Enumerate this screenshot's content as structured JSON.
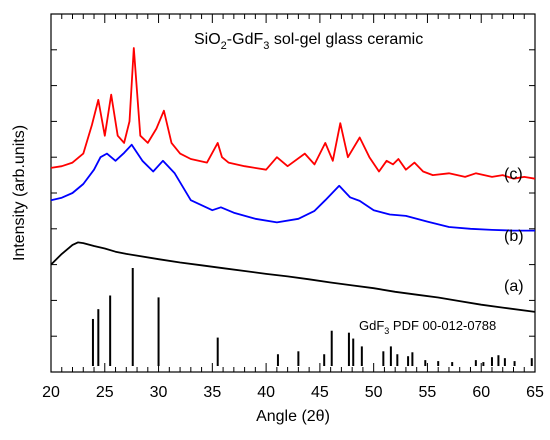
{
  "chart_data": {
    "type": "line",
    "title_main": "SiO",
    "title_sub1": "2",
    "title_mid": "-GdF",
    "title_sub2": "3",
    "title_end": " sol-gel glass ceramic",
    "xlabel": "Angle (2θ)",
    "ylabel": "Intensity (arb.units)",
    "xlim": [
      20,
      65
    ],
    "xticks": [
      20,
      25,
      30,
      35,
      40,
      45,
      50,
      55,
      60,
      65
    ],
    "y_ticklabels_shown": false,
    "grid": false,
    "colors": {
      "a": "#000000",
      "b": "#0000ff",
      "c": "#ff0000",
      "ref": "#000000"
    },
    "series": [
      {
        "name": "(a)",
        "label": "(a)",
        "x": [
          20,
          21,
          22,
          22.5,
          23,
          24,
          25,
          26,
          27,
          28,
          30,
          32,
          34,
          36,
          38,
          40,
          42,
          44,
          46,
          48,
          50,
          52,
          54,
          56,
          58,
          60,
          62,
          65
        ],
        "y": [
          0.3,
          0.33,
          0.355,
          0.362,
          0.36,
          0.352,
          0.345,
          0.336,
          0.33,
          0.325,
          0.315,
          0.306,
          0.298,
          0.29,
          0.282,
          0.274,
          0.267,
          0.259,
          0.25,
          0.242,
          0.234,
          0.224,
          0.216,
          0.208,
          0.198,
          0.188,
          0.18,
          0.168
        ]
      },
      {
        "name": "(b)",
        "label": "(b)",
        "x": [
          20,
          21,
          22,
          23,
          24,
          24.6,
          25.2,
          26,
          26.8,
          27.5,
          28.5,
          29.5,
          30.4,
          31.5,
          33,
          35,
          35.8,
          37,
          39,
          41,
          43,
          44.5,
          45.5,
          46.8,
          47.8,
          48.7,
          50,
          51.5,
          53,
          55,
          57,
          59,
          61,
          63,
          65
        ],
        "y": [
          0.48,
          0.487,
          0.5,
          0.525,
          0.565,
          0.6,
          0.61,
          0.59,
          0.612,
          0.635,
          0.59,
          0.56,
          0.59,
          0.555,
          0.48,
          0.452,
          0.46,
          0.445,
          0.428,
          0.418,
          0.428,
          0.45,
          0.48,
          0.52,
          0.488,
          0.478,
          0.452,
          0.44,
          0.436,
          0.42,
          0.405,
          0.4,
          0.397,
          0.395,
          0.395
        ]
      },
      {
        "name": "(c)",
        "label": "(c)",
        "x": [
          20,
          21,
          22,
          23,
          23.8,
          24.4,
          25,
          25.6,
          26.2,
          26.8,
          27.3,
          27.7,
          28.3,
          29,
          29.8,
          30.5,
          31.2,
          32,
          33,
          34.5,
          35.5,
          35.9,
          36.5,
          38,
          40,
          41,
          42,
          43.6,
          44.5,
          45.5,
          46.2,
          46.9,
          47.6,
          48.7,
          49.6,
          50.5,
          51.2,
          51.8,
          52.3,
          53,
          53.8,
          54.6,
          55.5,
          57,
          58.5,
          59.5,
          61,
          62,
          63,
          64,
          65
        ],
        "y": [
          0.57,
          0.575,
          0.585,
          0.61,
          0.69,
          0.76,
          0.66,
          0.775,
          0.66,
          0.64,
          0.7,
          0.905,
          0.66,
          0.64,
          0.68,
          0.73,
          0.64,
          0.61,
          0.595,
          0.585,
          0.64,
          0.6,
          0.585,
          0.575,
          0.565,
          0.6,
          0.575,
          0.61,
          0.58,
          0.64,
          0.59,
          0.695,
          0.6,
          0.655,
          0.6,
          0.56,
          0.59,
          0.58,
          0.595,
          0.565,
          0.585,
          0.56,
          0.55,
          0.555,
          0.545,
          0.555,
          0.545,
          0.55,
          0.54,
          0.545,
          0.54
        ]
      }
    ],
    "reference": {
      "label_pre": "GdF",
      "label_sub": "3",
      "label_post": " PDF 00-012-0788",
      "peaks": [
        {
          "x": 23.9,
          "h": 0.48
        },
        {
          "x": 24.4,
          "h": 0.58
        },
        {
          "x": 25.5,
          "h": 0.72
        },
        {
          "x": 27.6,
          "h": 1.0
        },
        {
          "x": 30.0,
          "h": 0.7
        },
        {
          "x": 35.5,
          "h": 0.29
        },
        {
          "x": 41.1,
          "h": 0.12
        },
        {
          "x": 43.0,
          "h": 0.15
        },
        {
          "x": 45.4,
          "h": 0.12
        },
        {
          "x": 46.1,
          "h": 0.36
        },
        {
          "x": 47.7,
          "h": 0.34
        },
        {
          "x": 48.1,
          "h": 0.28
        },
        {
          "x": 48.9,
          "h": 0.2
        },
        {
          "x": 50.9,
          "h": 0.15
        },
        {
          "x": 51.6,
          "h": 0.2
        },
        {
          "x": 52.2,
          "h": 0.12
        },
        {
          "x": 53.2,
          "h": 0.1
        },
        {
          "x": 53.6,
          "h": 0.14
        },
        {
          "x": 54.8,
          "h": 0.06
        },
        {
          "x": 56.0,
          "h": 0.05
        },
        {
          "x": 57.3,
          "h": 0.04
        },
        {
          "x": 59.5,
          "h": 0.06
        },
        {
          "x": 60.2,
          "h": 0.04
        },
        {
          "x": 61.0,
          "h": 0.09
        },
        {
          "x": 61.6,
          "h": 0.11
        },
        {
          "x": 62.2,
          "h": 0.08
        },
        {
          "x": 63.1,
          "h": 0.05
        },
        {
          "x": 64.7,
          "h": 0.08
        }
      ]
    }
  }
}
